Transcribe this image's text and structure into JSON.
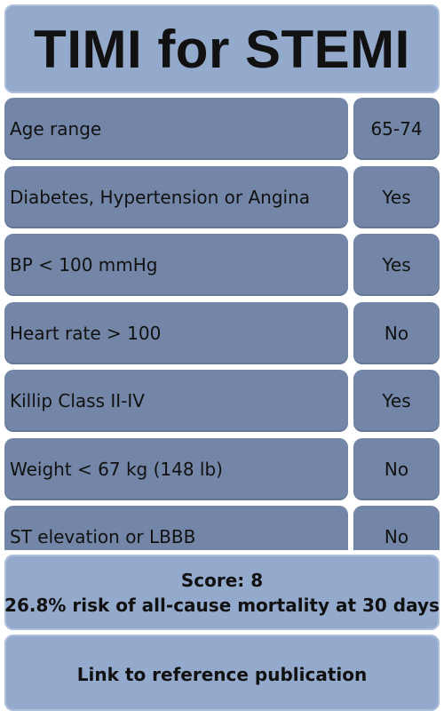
{
  "header": {
    "title": "TIMI for STEMI"
  },
  "criteria": [
    {
      "label": "Age range",
      "value": "65-74"
    },
    {
      "label": "Diabetes, Hypertension or Angina",
      "value": "Yes"
    },
    {
      "label": "BP < 100 mmHg",
      "value": "Yes"
    },
    {
      "label": "Heart rate > 100",
      "value": "No"
    },
    {
      "label": "Killip Class II-IV",
      "value": "Yes"
    },
    {
      "label": "Weight < 67 kg (148 lb)",
      "value": "No"
    },
    {
      "label": "ST elevation or LBBB",
      "value": "No"
    }
  ],
  "result": {
    "score_line": "Score: 8",
    "risk_line": "26.8% risk of all-cause mortality at 30 days"
  },
  "footer": {
    "link_label": "Link to reference publication"
  },
  "colors": {
    "panel_light": "#94aacd",
    "panel_dark": "#7386a7",
    "text": "#111111",
    "background": "#ffffff"
  }
}
